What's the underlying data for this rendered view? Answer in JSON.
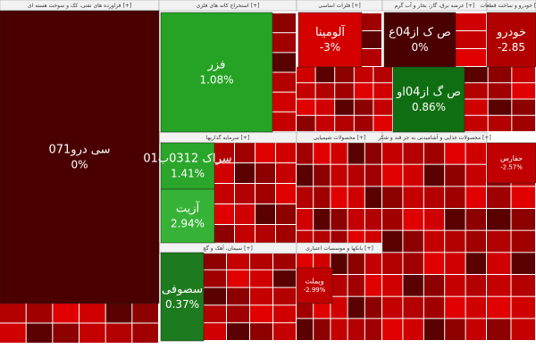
{
  "chart_data": {
    "type": "treemap",
    "sectors": [
      "فراورده های نفتی، کک و سوخت هسته ای [+]",
      "استخراج کانه های فلزی [+]",
      "فلزات اساسی [+]",
      "عرضه برق، گاز، بخار و آب گرم [+]",
      "خودرو و ساخت قطعات [+]",
      "سرمایه گذاریها [+]",
      "محصولات شیمیایی [+]",
      "محصولات غذایی و آشامیدنی به جز قند و شکر [+]",
      "سیمان، آهک و گچ [+]",
      "بانکها و موسسات اعتباری [+]"
    ],
    "labels": [
      "سی درو071",
      "فزر",
      "آلومینا",
      "ص ک از04ع",
      "خودرو",
      "ص گ از04او",
      "سراک 0312ب01",
      "آزیت",
      "سصوفی",
      "ویملت",
      "حفارس"
    ],
    "values": [
      0,
      1.08,
      -3,
      0,
      -2.85,
      0.86,
      1.41,
      2.94,
      0.37,
      -2.99,
      -2.57
    ],
    "value_labels": [
      "0%",
      "1.08%",
      "-3%",
      "0%",
      "-2.85",
      "0.86%",
      "1.41%",
      "2.94%",
      "0.37%",
      "-2.99%",
      "-2.57%"
    ],
    "colors": [
      "#4a0000",
      "#25a325",
      "#d40000",
      "#4a0000",
      "#b00000",
      "#0f6e12",
      "#2aa62a",
      "#36b336",
      "#1e7a1e",
      "#c00000",
      "#c00000"
    ]
  }
}
